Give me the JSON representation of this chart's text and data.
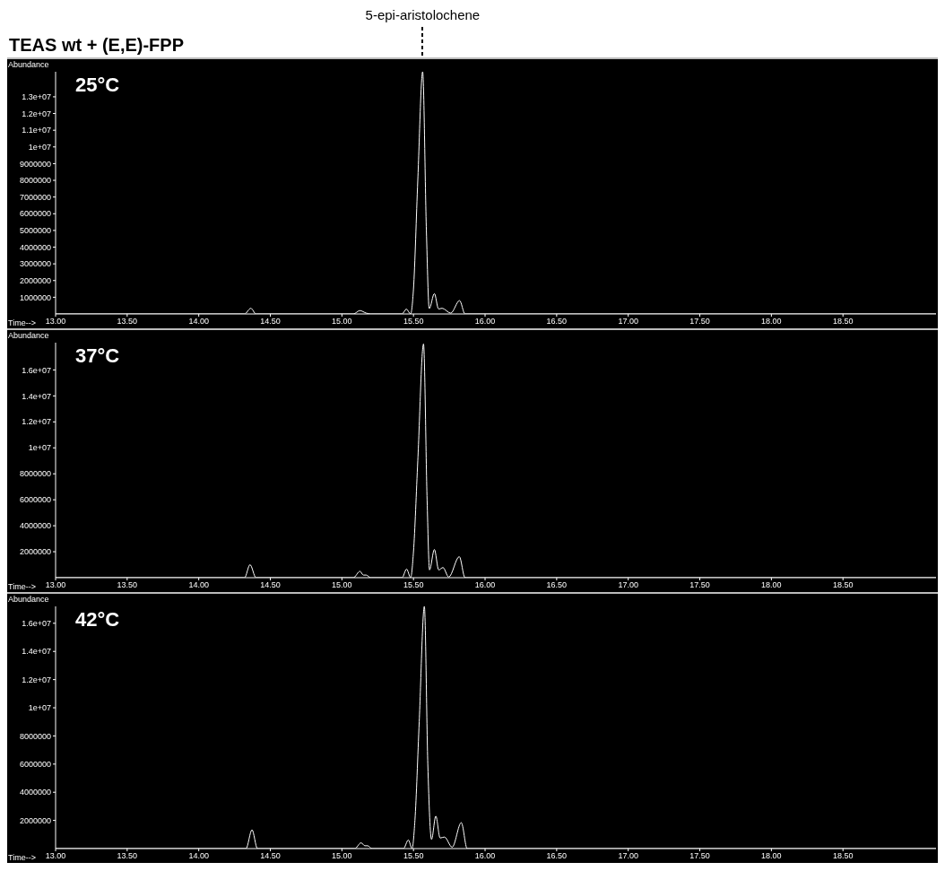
{
  "chart_data": [
    {
      "type": "line",
      "title": "TEAS wt + (E,E)-FPP",
      "xlabel": "Time-->",
      "ylabel": "Abundance",
      "annotations": [
        "25°C",
        "5-epi-aristolochene"
      ],
      "marker": "none",
      "line_style": "solid",
      "xlim": [
        13,
        19.15
      ],
      "xticks": [
        {
          "value": 13,
          "label": "13.00"
        },
        {
          "value": 13.5,
          "label": "13.50"
        },
        {
          "value": 14,
          "label": "14.00"
        },
        {
          "value": 14.5,
          "label": "14.50"
        },
        {
          "value": 15,
          "label": "15.00"
        },
        {
          "value": 15.5,
          "label": "15.50"
        },
        {
          "value": 16,
          "label": "16.00"
        },
        {
          "value": 16.5,
          "label": "16.50"
        },
        {
          "value": 17,
          "label": "17.00"
        },
        {
          "value": 17.5,
          "label": "17.50"
        },
        {
          "value": 18,
          "label": "18.00"
        },
        {
          "value": 18.5,
          "label": "18.50"
        }
      ],
      "ylim": [
        0,
        14500000
      ],
      "yticks": [
        1000000,
        2000000,
        3000000,
        4000000,
        5000000,
        6000000,
        7000000,
        8000000,
        9000000,
        {
          "value": 10000000,
          "label": "1e+07"
        },
        {
          "value": 11000000,
          "label": "1.1e+07"
        },
        {
          "value": 12000000,
          "label": "1.2e+07"
        },
        {
          "value": 13000000,
          "label": "1.3e+07"
        }
      ],
      "series": [
        {
          "color": "#ffffff",
          "x": [
            13,
            14.32,
            14.364,
            14.4,
            15.08,
            15.126,
            15.17,
            15.2,
            15.42,
            15.45,
            15.48,
            15.5,
            15.53,
            15.564,
            15.59,
            15.61,
            15.646,
            15.675,
            15.7,
            15.76,
            15.822,
            15.86,
            19.15
          ],
          "values": [
            0,
            0,
            340000,
            0,
            0,
            200000,
            50000,
            0,
            0,
            290000,
            0,
            1500000,
            8000000,
            14500000,
            5000000,
            320000,
            1220000,
            300000,
            340000,
            50000,
            800000,
            0,
            0
          ]
        }
      ]
    },
    {
      "type": "line",
      "xlabel": "Time-->",
      "ylabel": "Abundance",
      "annotations": [
        "37°C"
      ],
      "marker": "none",
      "line_style": "solid",
      "xlim": [
        13,
        19.15
      ],
      "xticks": [
        {
          "value": 13,
          "label": "13.00"
        },
        {
          "value": 13.5,
          "label": "13.50"
        },
        {
          "value": 14,
          "label": "14.00"
        },
        {
          "value": 14.5,
          "label": "14.50"
        },
        {
          "value": 15,
          "label": "15.00"
        },
        {
          "value": 15.5,
          "label": "15.50"
        },
        {
          "value": 16,
          "label": "16.00"
        },
        {
          "value": 16.5,
          "label": "16.50"
        },
        {
          "value": 17,
          "label": "17.00"
        },
        {
          "value": 17.5,
          "label": "17.50"
        },
        {
          "value": 18,
          "label": "18.00"
        },
        {
          "value": 18.5,
          "label": "18.50"
        }
      ],
      "ylim": [
        0,
        18100000
      ],
      "yticks": [
        2000000,
        4000000,
        6000000,
        8000000,
        {
          "value": 10000000,
          "label": "1e+07"
        },
        {
          "value": 12000000,
          "label": "1.2e+07"
        },
        {
          "value": 14000000,
          "label": "1.4e+07"
        },
        {
          "value": 16000000,
          "label": "1.6e+07"
        }
      ],
      "series": [
        {
          "color": "#ffffff",
          "x": [
            13,
            14.32,
            14.358,
            14.4,
            15.08,
            15.126,
            15.15,
            15.17,
            15.2,
            15.42,
            15.452,
            15.48,
            15.5,
            15.53,
            15.57,
            15.595,
            15.612,
            15.646,
            15.676,
            15.706,
            15.746,
            15.82,
            15.86,
            19.15
          ],
          "values": [
            0,
            0,
            1000000,
            0,
            0,
            490000,
            200000,
            200000,
            0,
            0,
            660000,
            0,
            2000000,
            9000000,
            18000000,
            6000000,
            600000,
            2170000,
            600000,
            780000,
            50000,
            1620000,
            0,
            0
          ]
        }
      ]
    },
    {
      "type": "line",
      "xlabel": "Time-->",
      "ylabel": "Abundance",
      "annotations": [
        "42°C"
      ],
      "marker": "none",
      "line_style": "solid",
      "xlim": [
        13,
        19.15
      ],
      "xticks": [
        {
          "value": 13,
          "label": "13.00"
        },
        {
          "value": 13.5,
          "label": "13.50"
        },
        {
          "value": 14,
          "label": "14.00"
        },
        {
          "value": 14.5,
          "label": "14.50"
        },
        {
          "value": 15,
          "label": "15.00"
        },
        {
          "value": 15.5,
          "label": "15.50"
        },
        {
          "value": 16,
          "label": "16.00"
        },
        {
          "value": 16.5,
          "label": "16.50"
        },
        {
          "value": 17,
          "label": "17.00"
        },
        {
          "value": 17.5,
          "label": "17.50"
        },
        {
          "value": 18,
          "label": "18.00"
        },
        {
          "value": 18.5,
          "label": "18.50"
        }
      ],
      "ylim": [
        0,
        17200000
      ],
      "yticks": [
        2000000,
        4000000,
        6000000,
        8000000,
        {
          "value": 10000000,
          "label": "1e+07"
        },
        {
          "value": 12000000,
          "label": "1.2e+07"
        },
        {
          "value": 14000000,
          "label": "1.4e+07"
        },
        {
          "value": 16000000,
          "label": "1.6e+07"
        }
      ],
      "series": [
        {
          "color": "#ffffff",
          "x": [
            13,
            14.33,
            14.372,
            14.41,
            15.09,
            15.134,
            15.16,
            15.18,
            15.21,
            15.43,
            15.464,
            15.49,
            15.51,
            15.54,
            15.576,
            15.6,
            15.626,
            15.656,
            15.686,
            15.716,
            15.77,
            15.834,
            15.875,
            19.15
          ],
          "values": [
            0,
            0,
            1330000,
            0,
            0,
            410000,
            200000,
            200000,
            0,
            0,
            610000,
            0,
            2000000,
            9000000,
            17200000,
            6000000,
            650000,
            2310000,
            750000,
            820000,
            100000,
            1840000,
            0,
            0
          ]
        }
      ]
    }
  ]
}
